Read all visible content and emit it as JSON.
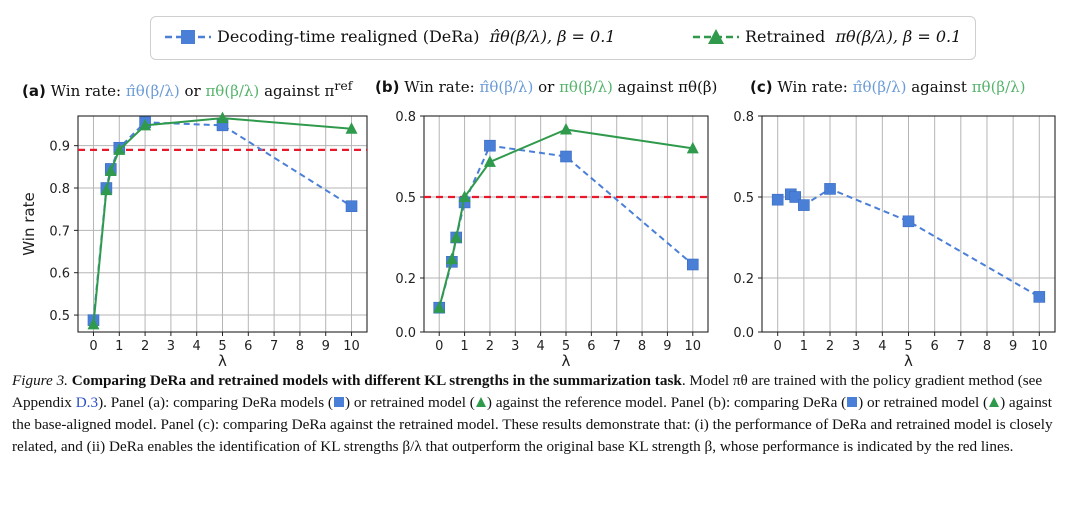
{
  "legend": {
    "derea_label": "Decoding-time realigned (DeRa)",
    "derea_math": "π̂θ(β/λ),  β = 0.1",
    "retrained_label": "Retrained",
    "retrained_math": "πθ(β/λ),  β = 0.1"
  },
  "panels": {
    "a": {
      "tag": "(a)",
      "prefix": "Win rate:",
      "s1": "π̂θ(β/λ)",
      "mid": "or",
      "s2": "πθ(β/λ)",
      "suffix": "against π",
      "sup": "ref"
    },
    "b": {
      "tag": "(b)",
      "prefix": "Win rate:",
      "s1": "π̂θ(β/λ)",
      "mid": "or",
      "s2": "πθ(β/λ)",
      "suffix": "against πθ(β)"
    },
    "c": {
      "tag": "(c)",
      "prefix": "Win rate:",
      "s1": "π̂θ(β/λ)",
      "mid": "against",
      "s2": "πθ(β/λ)"
    }
  },
  "colors": {
    "blue": "#4a7fd8",
    "green": "#2f9a4b",
    "red": "#e8192c",
    "grid": "#b5b5b5"
  },
  "chart_data": [
    {
      "id": "a",
      "type": "line",
      "xlabel": "λ",
      "ylabel": "Win rate",
      "xlim": [
        -0.6,
        10.6
      ],
      "ylim": [
        0.46,
        0.97
      ],
      "xticks": [
        0,
        1,
        2,
        3,
        4,
        5,
        6,
        7,
        8,
        9,
        10
      ],
      "xtick_labels": [
        "0",
        "1",
        "2",
        "3",
        "4",
        "5",
        "6",
        "7",
        "8",
        "9",
        "10"
      ],
      "yticks": [
        0.5,
        0.6,
        0.7,
        0.8,
        0.9
      ],
      "ytick_labels": [
        "0.5",
        "0.6",
        "0.7",
        "0.8",
        "0.9"
      ],
      "hline": 0.89,
      "series": [
        {
          "name": "DeRa",
          "x": [
            0,
            0.5,
            0.67,
            1,
            2,
            5,
            10
          ],
          "y": [
            0.488,
            0.8,
            0.845,
            0.895,
            0.955,
            0.948,
            0.757
          ]
        },
        {
          "name": "Retrained",
          "x": [
            0,
            0.5,
            0.67,
            1,
            2,
            5,
            10
          ],
          "y": [
            0.478,
            0.795,
            0.84,
            0.89,
            0.948,
            0.965,
            0.94
          ]
        }
      ]
    },
    {
      "id": "b",
      "type": "line",
      "xlabel": "λ",
      "ylabel": "",
      "xlim": [
        -0.6,
        10.6
      ],
      "ylim": [
        0.0,
        0.8
      ],
      "xticks": [
        0,
        1,
        2,
        3,
        4,
        5,
        6,
        7,
        8,
        9,
        10
      ],
      "xtick_labels": [
        "0",
        "1",
        "2",
        "3",
        "4",
        "5",
        "6",
        "7",
        "8",
        "9",
        "10"
      ],
      "yticks": [
        0.0,
        0.2,
        0.5,
        0.8
      ],
      "ytick_labels": [
        "0.0",
        "0.2",
        "0.5",
        "0.8"
      ],
      "hline": 0.5,
      "series": [
        {
          "name": "DeRa",
          "x": [
            0,
            0.5,
            0.67,
            1,
            2,
            5,
            10
          ],
          "y": [
            0.09,
            0.26,
            0.35,
            0.48,
            0.69,
            0.65,
            0.25
          ]
        },
        {
          "name": "Retrained",
          "x": [
            0,
            0.5,
            0.67,
            1,
            2,
            5,
            10
          ],
          "y": [
            0.09,
            0.27,
            0.35,
            0.5,
            0.63,
            0.75,
            0.68
          ]
        }
      ]
    },
    {
      "id": "c",
      "type": "line",
      "xlabel": "λ",
      "ylabel": "",
      "xlim": [
        -0.6,
        10.6
      ],
      "ylim": [
        0.0,
        0.8
      ],
      "xticks": [
        0,
        1,
        2,
        3,
        4,
        5,
        6,
        7,
        8,
        9,
        10
      ],
      "xtick_labels": [
        "0",
        "1",
        "2",
        "3",
        "4",
        "5",
        "6",
        "7",
        "8",
        "9",
        "10"
      ],
      "yticks": [
        0.0,
        0.2,
        0.5,
        0.8
      ],
      "ytick_labels": [
        "0.0",
        "0.2",
        "0.5",
        "0.8"
      ],
      "hline": null,
      "series": [
        {
          "name": "DeRa",
          "x": [
            0,
            0.5,
            0.67,
            1,
            2,
            5,
            10
          ],
          "y": [
            0.49,
            0.51,
            0.5,
            0.47,
            0.53,
            0.41,
            0.13
          ]
        }
      ]
    }
  ],
  "caption": {
    "figure_label": "Figure 3.",
    "bold_title": "Comparing DeRa and retrained models with different KL strengths in the summarization task",
    "part1": ". Model πθ are trained with the policy gradient method (see Appendix ",
    "appendix_link": "D.3",
    "part2": "). Panel (a): comparing DeRa models (",
    "part3": ") or retrained model (",
    "part4": ") against the reference model. Panel (b): comparing DeRa (",
    "part5": ") or retrained model (",
    "part6": ") against the base-aligned model. Panel (c): comparing DeRa against the retrained model. These results demonstrate that: (i) the performance of DeRa and retrained model is closely related, and (ii) DeRa enables the identification of KL strengths β/λ that outperform the original base KL strength β, whose performance is indicated by the red lines."
  }
}
